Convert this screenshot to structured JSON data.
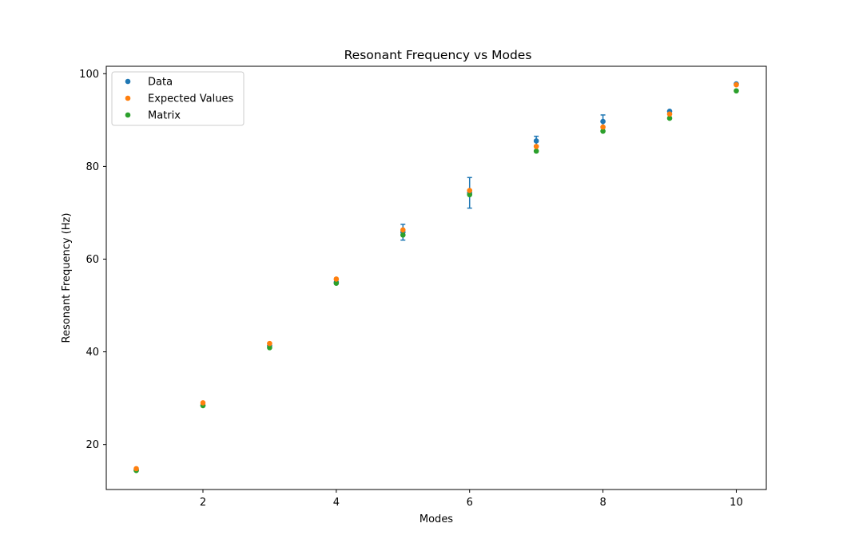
{
  "chart_data": {
    "type": "scatter",
    "title": "Resonant Frequency vs Modes",
    "xlabel": "Modes",
    "ylabel": "Resonant Frequency (Hz)",
    "xlim": [
      0.55,
      10.45
    ],
    "ylim": [
      10.3,
      101.6
    ],
    "xticks": [
      2,
      4,
      6,
      8,
      10
    ],
    "yticks": [
      20,
      40,
      60,
      80,
      100
    ],
    "grid": false,
    "legend_position": "top-left",
    "series": [
      {
        "name": "Data",
        "color": "#1f77b4",
        "x": [
          1,
          2,
          3,
          4,
          5,
          6,
          7,
          8,
          9,
          10
        ],
        "y": [
          14.5,
          28.5,
          41.3,
          55.0,
          65.8,
          74.3,
          85.5,
          89.7,
          91.9,
          97.8
        ],
        "yerr": [
          0,
          0,
          0,
          0,
          1.7,
          3.3,
          1.0,
          1.4,
          0,
          0
        ]
      },
      {
        "name": "Expected Values",
        "color": "#ff7f0e",
        "x": [
          1,
          2,
          3,
          4,
          5,
          6,
          7,
          8,
          9,
          10
        ],
        "y": [
          14.8,
          29.0,
          41.8,
          55.7,
          66.3,
          74.8,
          84.3,
          88.5,
          91.3,
          97.6
        ]
      },
      {
        "name": "Matrix",
        "color": "#2ca02c",
        "x": [
          1,
          2,
          3,
          4,
          5,
          6,
          7,
          8,
          9,
          10
        ],
        "y": [
          14.4,
          28.4,
          40.9,
          54.8,
          65.2,
          73.9,
          83.3,
          87.6,
          90.4,
          96.3
        ]
      }
    ]
  }
}
